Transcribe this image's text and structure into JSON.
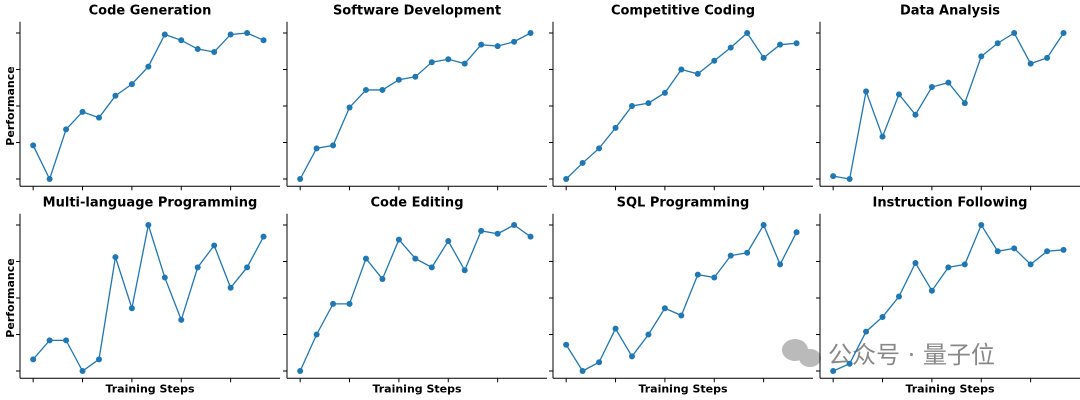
{
  "chart_data": [
    {
      "type": "line",
      "title": "Code Generation",
      "y_label": "Performance",
      "x": [
        0,
        1,
        2,
        3,
        4,
        5,
        6,
        7,
        8,
        9,
        10,
        11,
        12,
        13,
        14
      ],
      "series": [
        {
          "color": "#1f77b4",
          "values": [
            23,
            0,
            34,
            46,
            42,
            57,
            65,
            77,
            99,
            95,
            89,
            87,
            99,
            100,
            95
          ]
        }
      ],
      "xlim": [
        -0.8,
        15
      ],
      "ylim": [
        -5,
        105
      ],
      "xticks": [
        0,
        3,
        6,
        9,
        12
      ],
      "yticks": [
        0,
        25,
        50,
        75,
        100
      ]
    },
    {
      "type": "line",
      "title": "Software Development",
      "x": [
        0,
        1,
        2,
        3,
        4,
        5,
        6,
        7,
        8,
        9,
        10,
        11,
        12,
        13,
        14
      ],
      "series": [
        {
          "color": "#1f77b4",
          "values": [
            0,
            21,
            23,
            49,
            61,
            61,
            68,
            70,
            80,
            82,
            79,
            92,
            91,
            94,
            100
          ]
        }
      ],
      "xlim": [
        -0.8,
        15
      ],
      "ylim": [
        -5,
        105
      ],
      "xticks": [
        0,
        3,
        6,
        9,
        12
      ],
      "yticks": [
        0,
        25,
        50,
        75,
        100
      ]
    },
    {
      "type": "line",
      "title": "Competitive Coding",
      "x": [
        0,
        1,
        2,
        3,
        4,
        5,
        6,
        7,
        8,
        9,
        10,
        11,
        12,
        13,
        14
      ],
      "series": [
        {
          "color": "#1f77b4",
          "values": [
            0,
            11,
            21,
            35,
            50,
            52,
            59,
            75,
            72,
            81,
            90,
            100,
            83,
            92,
            93
          ]
        }
      ],
      "xlim": [
        -0.8,
        15
      ],
      "ylim": [
        -5,
        105
      ],
      "xticks": [
        0,
        3,
        6,
        9,
        12
      ],
      "yticks": [
        0,
        25,
        50,
        75,
        100
      ]
    },
    {
      "type": "line",
      "title": "Data Analysis",
      "x": [
        0,
        1,
        2,
        3,
        4,
        5,
        6,
        7,
        8,
        9,
        10,
        11,
        12,
        13,
        14
      ],
      "series": [
        {
          "color": "#1f77b4",
          "values": [
            2,
            0,
            60,
            29,
            58,
            44,
            63,
            66,
            52,
            84,
            93,
            100,
            79,
            83,
            100
          ]
        }
      ],
      "xlim": [
        -0.8,
        15
      ],
      "ylim": [
        -5,
        105
      ],
      "xticks": [
        0,
        3,
        6,
        9,
        12
      ],
      "yticks": [
        0,
        25,
        50,
        75,
        100
      ]
    },
    {
      "type": "line",
      "title": "Multi-language Programming",
      "y_label": "Performance",
      "x_label": "Training Steps",
      "x": [
        0,
        1,
        2,
        3,
        4,
        5,
        6,
        7,
        8,
        9,
        10,
        11,
        12,
        13,
        14
      ],
      "series": [
        {
          "color": "#1f77b4",
          "values": [
            8,
            21,
            21,
            0,
            8,
            78,
            43,
            100,
            64,
            35,
            71,
            86,
            57,
            71,
            92
          ]
        }
      ],
      "xlim": [
        -0.8,
        15
      ],
      "ylim": [
        -5,
        105
      ],
      "xticks": [
        0,
        3,
        6,
        9,
        12
      ],
      "yticks": [
        0,
        25,
        50,
        75,
        100
      ]
    },
    {
      "type": "line",
      "title": "Code Editing",
      "x_label": "Training Steps",
      "x": [
        0,
        1,
        2,
        3,
        4,
        5,
        6,
        7,
        8,
        9,
        10,
        11,
        12,
        13,
        14
      ],
      "series": [
        {
          "color": "#1f77b4",
          "values": [
            0,
            25,
            46,
            46,
            77,
            63,
            90,
            77,
            71,
            89,
            69,
            96,
            94,
            100,
            92
          ]
        }
      ],
      "xlim": [
        -0.8,
        15
      ],
      "ylim": [
        -5,
        105
      ],
      "xticks": [
        0,
        3,
        6,
        9,
        12
      ],
      "yticks": [
        0,
        25,
        50,
        75,
        100
      ]
    },
    {
      "type": "line",
      "title": "SQL Programming",
      "x_label": "Training Steps",
      "x": [
        0,
        1,
        2,
        3,
        4,
        5,
        6,
        7,
        8,
        9,
        10,
        11,
        12,
        13,
        14
      ],
      "series": [
        {
          "color": "#1f77b4",
          "values": [
            18,
            0,
            6,
            29,
            10,
            25,
            43,
            38,
            66,
            64,
            79,
            81,
            100,
            73,
            95
          ]
        }
      ],
      "xlim": [
        -0.8,
        15
      ],
      "ylim": [
        -5,
        105
      ],
      "xticks": [
        0,
        3,
        6,
        9,
        12
      ],
      "yticks": [
        0,
        25,
        50,
        75,
        100
      ]
    },
    {
      "type": "line",
      "title": "Instruction Following",
      "x_label": "Training Steps",
      "x": [
        0,
        1,
        2,
        3,
        4,
        5,
        6,
        7,
        8,
        9,
        10,
        11,
        12,
        13,
        14
      ],
      "series": [
        {
          "color": "#1f77b4",
          "values": [
            0,
            5,
            27,
            37,
            51,
            74,
            55,
            71,
            73,
            100,
            82,
            84,
            73,
            82,
            83
          ]
        }
      ],
      "xlim": [
        -0.8,
        15
      ],
      "ylim": [
        -5,
        105
      ],
      "xticks": [
        0,
        3,
        6,
        9,
        12
      ],
      "yticks": [
        0,
        25,
        50,
        75,
        100
      ]
    }
  ],
  "watermark": "公众号 · 量子位"
}
